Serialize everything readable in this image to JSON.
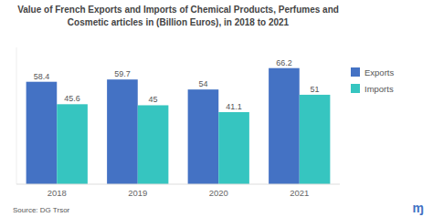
{
  "chart_data": {
    "type": "bar",
    "title": "Value of French Exports and Imports of Chemical Products, Perfumes and\nCosmetic articles in (Billion Euros), in 2018 to 2021",
    "categories": [
      "2018",
      "2019",
      "2020",
      "2021"
    ],
    "series": [
      {
        "name": "Exports",
        "color": "#4472c4",
        "values": [
          58.4,
          59.7,
          54,
          66.2
        ]
      },
      {
        "name": "Imports",
        "color": "#36c5c0",
        "values": [
          45.6,
          45,
          41.1,
          51
        ]
      }
    ],
    "ylim": [
      0,
      78
    ],
    "data_labels": true,
    "tick_labels": "x",
    "grid": false,
    "legend": "right",
    "annotations": [
      "Source:  DG Trsor",
      "ɱ"
    ]
  }
}
